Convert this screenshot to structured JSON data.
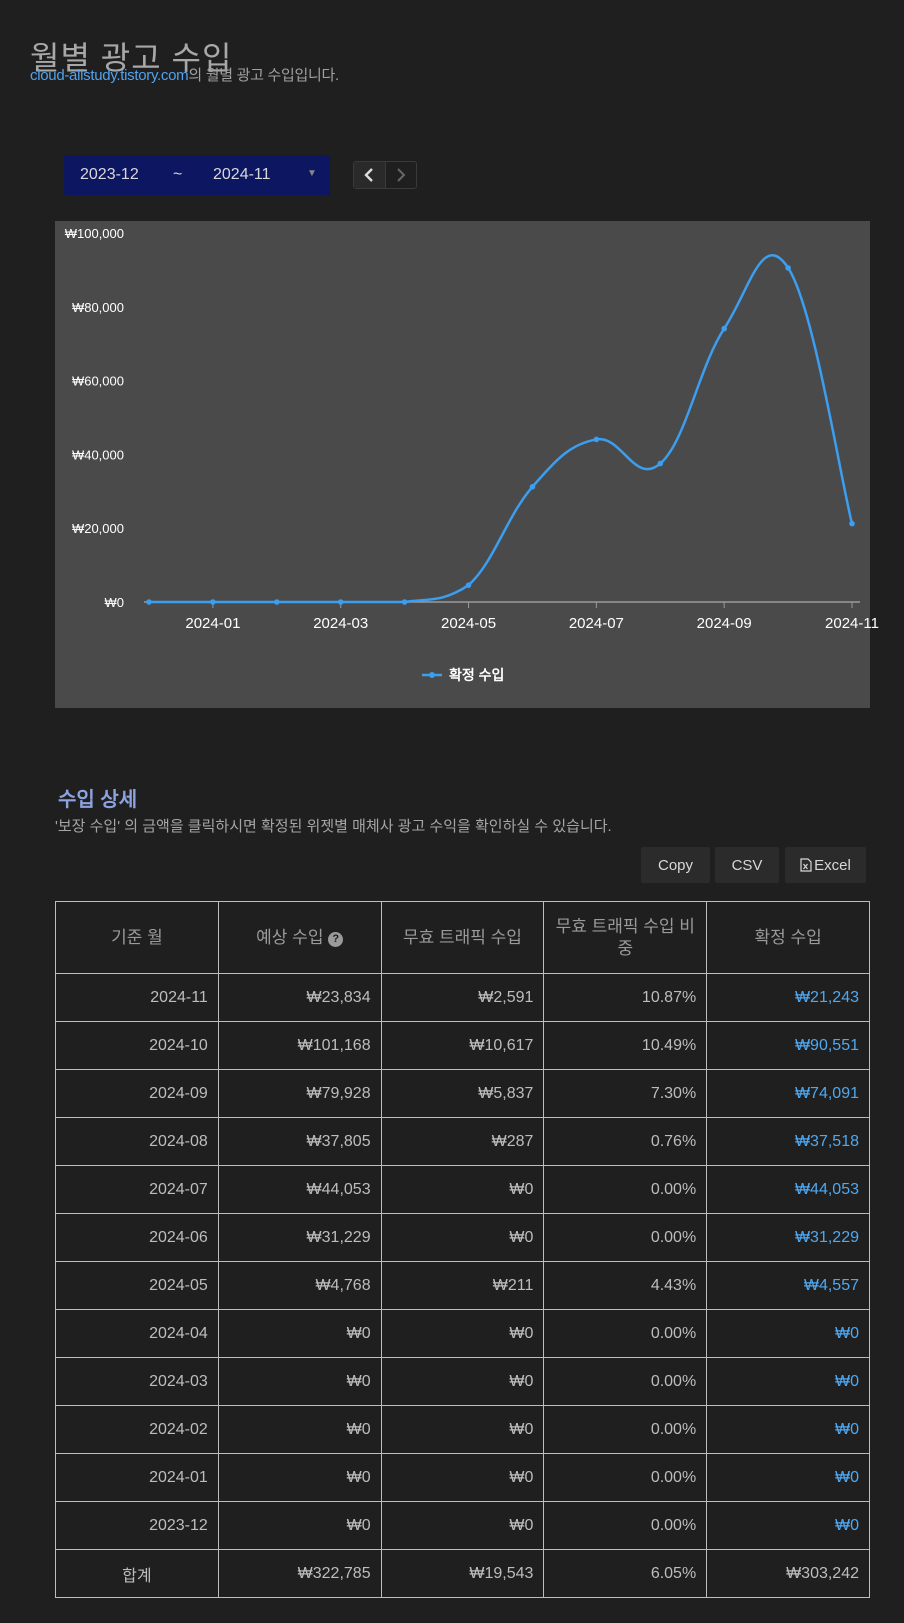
{
  "header": {
    "title": "월별 광고 수입",
    "site_link": "cloud-allstudy.tistory.com",
    "subtitle_suffix": "의 월별 광고 수입입니다."
  },
  "range": {
    "from": "2023-12",
    "separator": "~",
    "to": "2024-11"
  },
  "nav": {
    "prev_icon": "chevron-left-icon",
    "next_icon": "chevron-right-icon"
  },
  "chart_data": {
    "type": "line",
    "x": [
      "2023-12",
      "2024-01",
      "2024-02",
      "2024-03",
      "2024-04",
      "2024-05",
      "2024-06",
      "2024-07",
      "2024-08",
      "2024-09",
      "2024-10",
      "2024-11"
    ],
    "x_tick_labels": [
      "2024-01",
      "2024-03",
      "2024-05",
      "2024-07",
      "2024-09",
      "2024-11"
    ],
    "series": [
      {
        "name": "확정 수입",
        "color": "#3b9ef0",
        "values": [
          0,
          0,
          0,
          0,
          0,
          4557,
          31229,
          44053,
          37518,
          74091,
          90551,
          21243
        ]
      }
    ],
    "y_tick_labels": [
      "₩0",
      "₩20,000",
      "₩40,000",
      "₩60,000",
      "₩80,000",
      "₩100,000"
    ],
    "ylim": [
      0,
      100000
    ],
    "legend_position": "bottom-center",
    "smooth": true
  },
  "detail": {
    "title": "수입 상세",
    "description": "'보장 수입' 의 금액을 클릭하시면 확정된 위젯별 매체사 광고 수익을 확인하실 수 있습니다.",
    "buttons": {
      "copy": "Copy",
      "csv": "CSV",
      "excel": "Excel"
    }
  },
  "table": {
    "headers": [
      "기준 월",
      "예상 수입",
      "무효 트래픽 수입",
      "무효 트래픽 수입 비중",
      "확정 수입"
    ],
    "help_icon": "?",
    "rows": [
      [
        "2024-11",
        "₩23,834",
        "₩2,591",
        "10.87%",
        "₩21,243"
      ],
      [
        "2024-10",
        "₩101,168",
        "₩10,617",
        "10.49%",
        "₩90,551"
      ],
      [
        "2024-09",
        "₩79,928",
        "₩5,837",
        "7.30%",
        "₩74,091"
      ],
      [
        "2024-08",
        "₩37,805",
        "₩287",
        "0.76%",
        "₩37,518"
      ],
      [
        "2024-07",
        "₩44,053",
        "₩0",
        "0.00%",
        "₩44,053"
      ],
      [
        "2024-06",
        "₩31,229",
        "₩0",
        "0.00%",
        "₩31,229"
      ],
      [
        "2024-05",
        "₩4,768",
        "₩211",
        "4.43%",
        "₩4,557"
      ],
      [
        "2024-04",
        "₩0",
        "₩0",
        "0.00%",
        "₩0"
      ],
      [
        "2024-03",
        "₩0",
        "₩0",
        "0.00%",
        "₩0"
      ],
      [
        "2024-02",
        "₩0",
        "₩0",
        "0.00%",
        "₩0"
      ],
      [
        "2024-01",
        "₩0",
        "₩0",
        "0.00%",
        "₩0"
      ],
      [
        "2023-12",
        "₩0",
        "₩0",
        "0.00%",
        "₩0"
      ]
    ],
    "total": [
      "합계",
      "₩322,785",
      "₩19,543",
      "6.05%",
      "₩303,242"
    ]
  }
}
